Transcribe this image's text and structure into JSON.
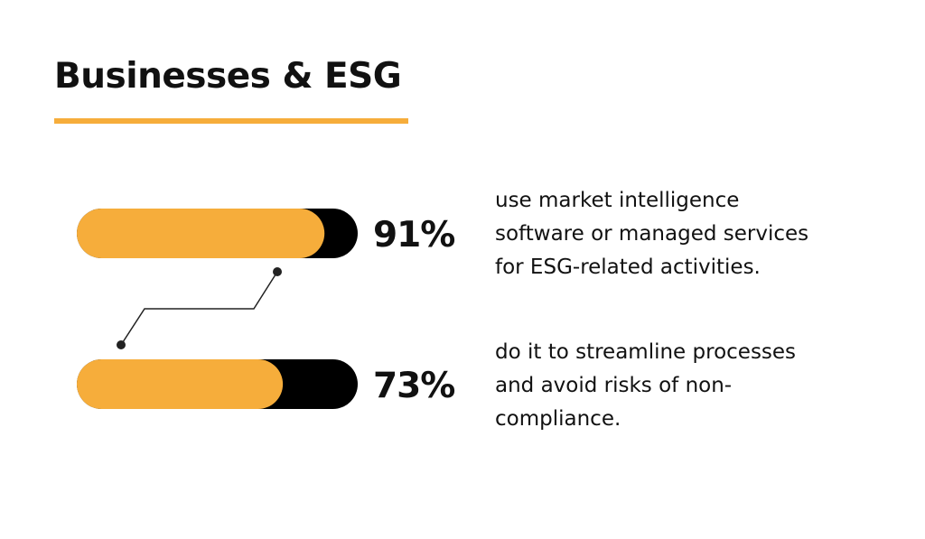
{
  "header": {
    "title": "Businesses & ESG"
  },
  "colors": {
    "bar_fill": "#f6ad3b",
    "bar_track": "#000000",
    "connector": "#222222",
    "accent_underline": "#f6ad3b"
  },
  "chart_data": {
    "type": "bar",
    "orientation": "horizontal",
    "title": "Businesses & ESG",
    "xlim": [
      0,
      100
    ],
    "unit": "%",
    "grid": false,
    "values": [
      91,
      73
    ],
    "value_labels": [
      "91%",
      "73%"
    ]
  },
  "descriptions": [
    {
      "lines": [
        "use market intelligence",
        "software or managed services",
        "for ESG-related activities."
      ]
    },
    {
      "lines": [
        "do it to streamline processes",
        "and avoid risks of non-",
        "compliance."
      ]
    }
  ]
}
